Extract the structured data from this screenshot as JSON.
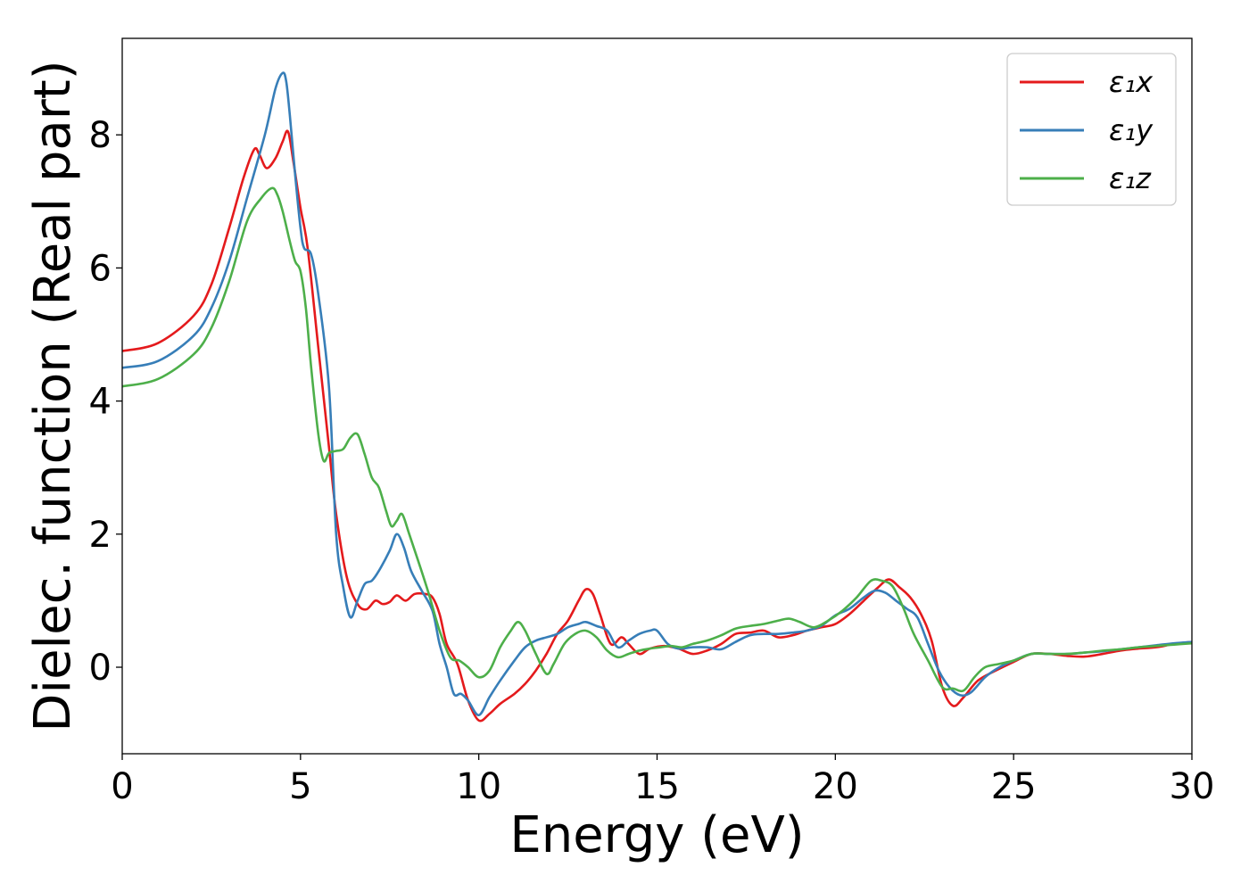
{
  "chart_data": {
    "type": "line",
    "xlabel": "Energy (eV)",
    "ylabel": "Dielec. function (Real part)",
    "xlim": [
      0,
      30
    ],
    "ylim": [
      -1.3,
      9.45
    ],
    "xticks": [
      0,
      5,
      10,
      15,
      20,
      25,
      30
    ],
    "yticks": [
      0,
      2,
      4,
      6,
      8
    ],
    "grid": false,
    "legend_position": "top-right",
    "series": [
      {
        "name": "ε₁x",
        "color": "#e41a1c",
        "x": [
          0,
          1,
          2,
          2.5,
          3,
          3.4,
          3.7,
          3.85,
          4.05,
          4.3,
          4.5,
          4.65,
          4.8,
          5.0,
          5.2,
          5.5,
          5.8,
          6.0,
          6.3,
          6.6,
          6.85,
          7.1,
          7.3,
          7.5,
          7.7,
          7.95,
          8.2,
          8.5,
          8.7,
          8.9,
          9.1,
          9.4,
          9.7,
          10.0,
          10.3,
          10.6,
          11.0,
          11.3,
          11.6,
          11.9,
          12.2,
          12.5,
          12.8,
          13.0,
          13.2,
          13.4,
          13.7,
          14.0,
          14.2,
          14.5,
          14.8,
          15.2,
          15.6,
          16.0,
          16.4,
          16.8,
          17.2,
          17.6,
          18.0,
          18.4,
          18.8,
          19.2,
          19.6,
          20.0,
          20.4,
          20.8,
          21.2,
          21.5,
          21.8,
          22.1,
          22.4,
          22.7,
          23.0,
          23.3,
          23.6,
          24.0,
          24.5,
          25.0,
          25.5,
          26.0,
          26.5,
          27.0,
          27.5,
          28.0,
          28.5,
          29.0,
          29.5,
          30.0
        ],
        "y": [
          4.75,
          4.87,
          5.28,
          5.75,
          6.6,
          7.35,
          7.78,
          7.7,
          7.5,
          7.65,
          7.9,
          8.05,
          7.6,
          6.9,
          6.3,
          4.8,
          3.3,
          2.3,
          1.35,
          0.95,
          0.87,
          1.0,
          0.95,
          0.98,
          1.08,
          1.0,
          1.1,
          1.1,
          1.05,
          0.8,
          0.35,
          0.05,
          -0.5,
          -0.8,
          -0.7,
          -0.55,
          -0.4,
          -0.25,
          -0.05,
          0.2,
          0.5,
          0.7,
          1.0,
          1.17,
          1.1,
          0.8,
          0.35,
          0.45,
          0.35,
          0.2,
          0.28,
          0.32,
          0.28,
          0.2,
          0.25,
          0.35,
          0.5,
          0.52,
          0.55,
          0.45,
          0.48,
          0.55,
          0.6,
          0.65,
          0.8,
          1.0,
          1.2,
          1.32,
          1.2,
          1.05,
          0.8,
          0.4,
          -0.3,
          -0.58,
          -0.45,
          -0.2,
          -0.05,
          0.08,
          0.2,
          0.2,
          0.17,
          0.16,
          0.2,
          0.25,
          0.28,
          0.3,
          0.35,
          0.38
        ]
      },
      {
        "name": "ε₁y",
        "color": "#377eb8",
        "x": [
          0,
          1,
          2,
          2.5,
          3,
          3.5,
          4.0,
          4.3,
          4.5,
          4.6,
          4.7,
          4.85,
          5.0,
          5.1,
          5.3,
          5.5,
          5.8,
          6.0,
          6.2,
          6.4,
          6.6,
          6.8,
          7.0,
          7.2,
          7.5,
          7.7,
          7.9,
          8.1,
          8.4,
          8.7,
          8.9,
          9.1,
          9.3,
          9.5,
          9.7,
          10.0,
          10.3,
          10.6,
          11.0,
          11.3,
          11.6,
          11.9,
          12.2,
          12.5,
          12.8,
          13.0,
          13.3,
          13.6,
          13.9,
          14.2,
          14.5,
          14.8,
          15.0,
          15.3,
          15.6,
          16.0,
          16.4,
          16.8,
          17.2,
          17.6,
          18.0,
          18.4,
          18.8,
          19.2,
          19.6,
          20.0,
          20.4,
          20.8,
          21.1,
          21.4,
          21.7,
          22.0,
          22.3,
          22.6,
          22.9,
          23.2,
          23.5,
          23.8,
          24.2,
          24.6,
          25.0,
          25.5,
          26.0,
          26.5,
          27.0,
          27.5,
          28.0,
          28.5,
          29.0,
          29.5,
          30.0
        ],
        "y": [
          4.5,
          4.6,
          4.98,
          5.4,
          6.1,
          7.05,
          8.0,
          8.7,
          8.93,
          8.8,
          8.3,
          7.4,
          6.6,
          6.3,
          6.2,
          5.6,
          4.2,
          2.0,
          1.2,
          0.75,
          1.0,
          1.25,
          1.3,
          1.45,
          1.75,
          2.0,
          1.8,
          1.45,
          1.15,
          0.85,
          0.35,
          0.0,
          -0.4,
          -0.4,
          -0.5,
          -0.72,
          -0.45,
          -0.2,
          0.1,
          0.3,
          0.4,
          0.45,
          0.5,
          0.6,
          0.65,
          0.68,
          0.62,
          0.55,
          0.3,
          0.4,
          0.5,
          0.55,
          0.55,
          0.35,
          0.28,
          0.3,
          0.3,
          0.27,
          0.38,
          0.48,
          0.5,
          0.5,
          0.52,
          0.55,
          0.62,
          0.78,
          0.88,
          1.05,
          1.15,
          1.12,
          1.0,
          0.88,
          0.75,
          0.35,
          -0.05,
          -0.3,
          -0.42,
          -0.38,
          -0.15,
          0.0,
          0.1,
          0.2,
          0.2,
          0.2,
          0.22,
          0.24,
          0.27,
          0.3,
          0.33,
          0.36,
          0.38
        ]
      },
      {
        "name": "ε₁z",
        "color": "#4daf4a",
        "x": [
          0,
          1,
          2,
          2.5,
          3,
          3.5,
          3.9,
          4.2,
          4.35,
          4.5,
          4.7,
          4.85,
          5.0,
          5.15,
          5.3,
          5.5,
          5.65,
          5.8,
          6.0,
          6.2,
          6.4,
          6.6,
          6.8,
          7.0,
          7.2,
          7.4,
          7.55,
          7.7,
          7.85,
          8.05,
          8.3,
          8.6,
          8.9,
          9.2,
          9.45,
          9.7,
          10.0,
          10.3,
          10.6,
          10.9,
          11.1,
          11.3,
          11.6,
          11.9,
          12.1,
          12.4,
          12.7,
          13.0,
          13.3,
          13.6,
          13.9,
          14.2,
          14.5,
          14.8,
          15.1,
          15.4,
          15.7,
          16.0,
          16.4,
          16.8,
          17.2,
          17.6,
          18.0,
          18.4,
          18.7,
          19.0,
          19.4,
          19.8,
          20.2,
          20.6,
          21.0,
          21.3,
          21.6,
          21.9,
          22.2,
          22.6,
          23.0,
          23.3,
          23.6,
          23.9,
          24.2,
          24.6,
          25.0,
          25.5,
          26.0,
          26.5,
          27.0,
          27.5,
          28.0,
          28.5,
          29.0,
          29.5,
          30.0
        ],
        "y": [
          4.22,
          4.33,
          4.7,
          5.1,
          5.8,
          6.7,
          7.05,
          7.2,
          7.1,
          6.85,
          6.4,
          6.1,
          5.95,
          5.4,
          4.5,
          3.5,
          3.1,
          3.22,
          3.25,
          3.28,
          3.45,
          3.5,
          3.2,
          2.85,
          2.7,
          2.35,
          2.12,
          2.2,
          2.3,
          2.0,
          1.6,
          1.1,
          0.55,
          0.15,
          0.1,
          0.0,
          -0.15,
          -0.05,
          0.3,
          0.55,
          0.68,
          0.55,
          0.2,
          -0.1,
          0.05,
          0.35,
          0.5,
          0.55,
          0.45,
          0.25,
          0.15,
          0.2,
          0.25,
          0.28,
          0.3,
          0.32,
          0.3,
          0.35,
          0.4,
          0.48,
          0.58,
          0.62,
          0.65,
          0.7,
          0.73,
          0.68,
          0.6,
          0.7,
          0.85,
          1.05,
          1.3,
          1.3,
          1.22,
          0.9,
          0.5,
          0.1,
          -0.3,
          -0.32,
          -0.35,
          -0.15,
          0.0,
          0.05,
          0.1,
          0.2,
          0.2,
          0.2,
          0.22,
          0.25,
          0.27,
          0.3,
          0.32,
          0.34,
          0.36
        ]
      }
    ]
  }
}
